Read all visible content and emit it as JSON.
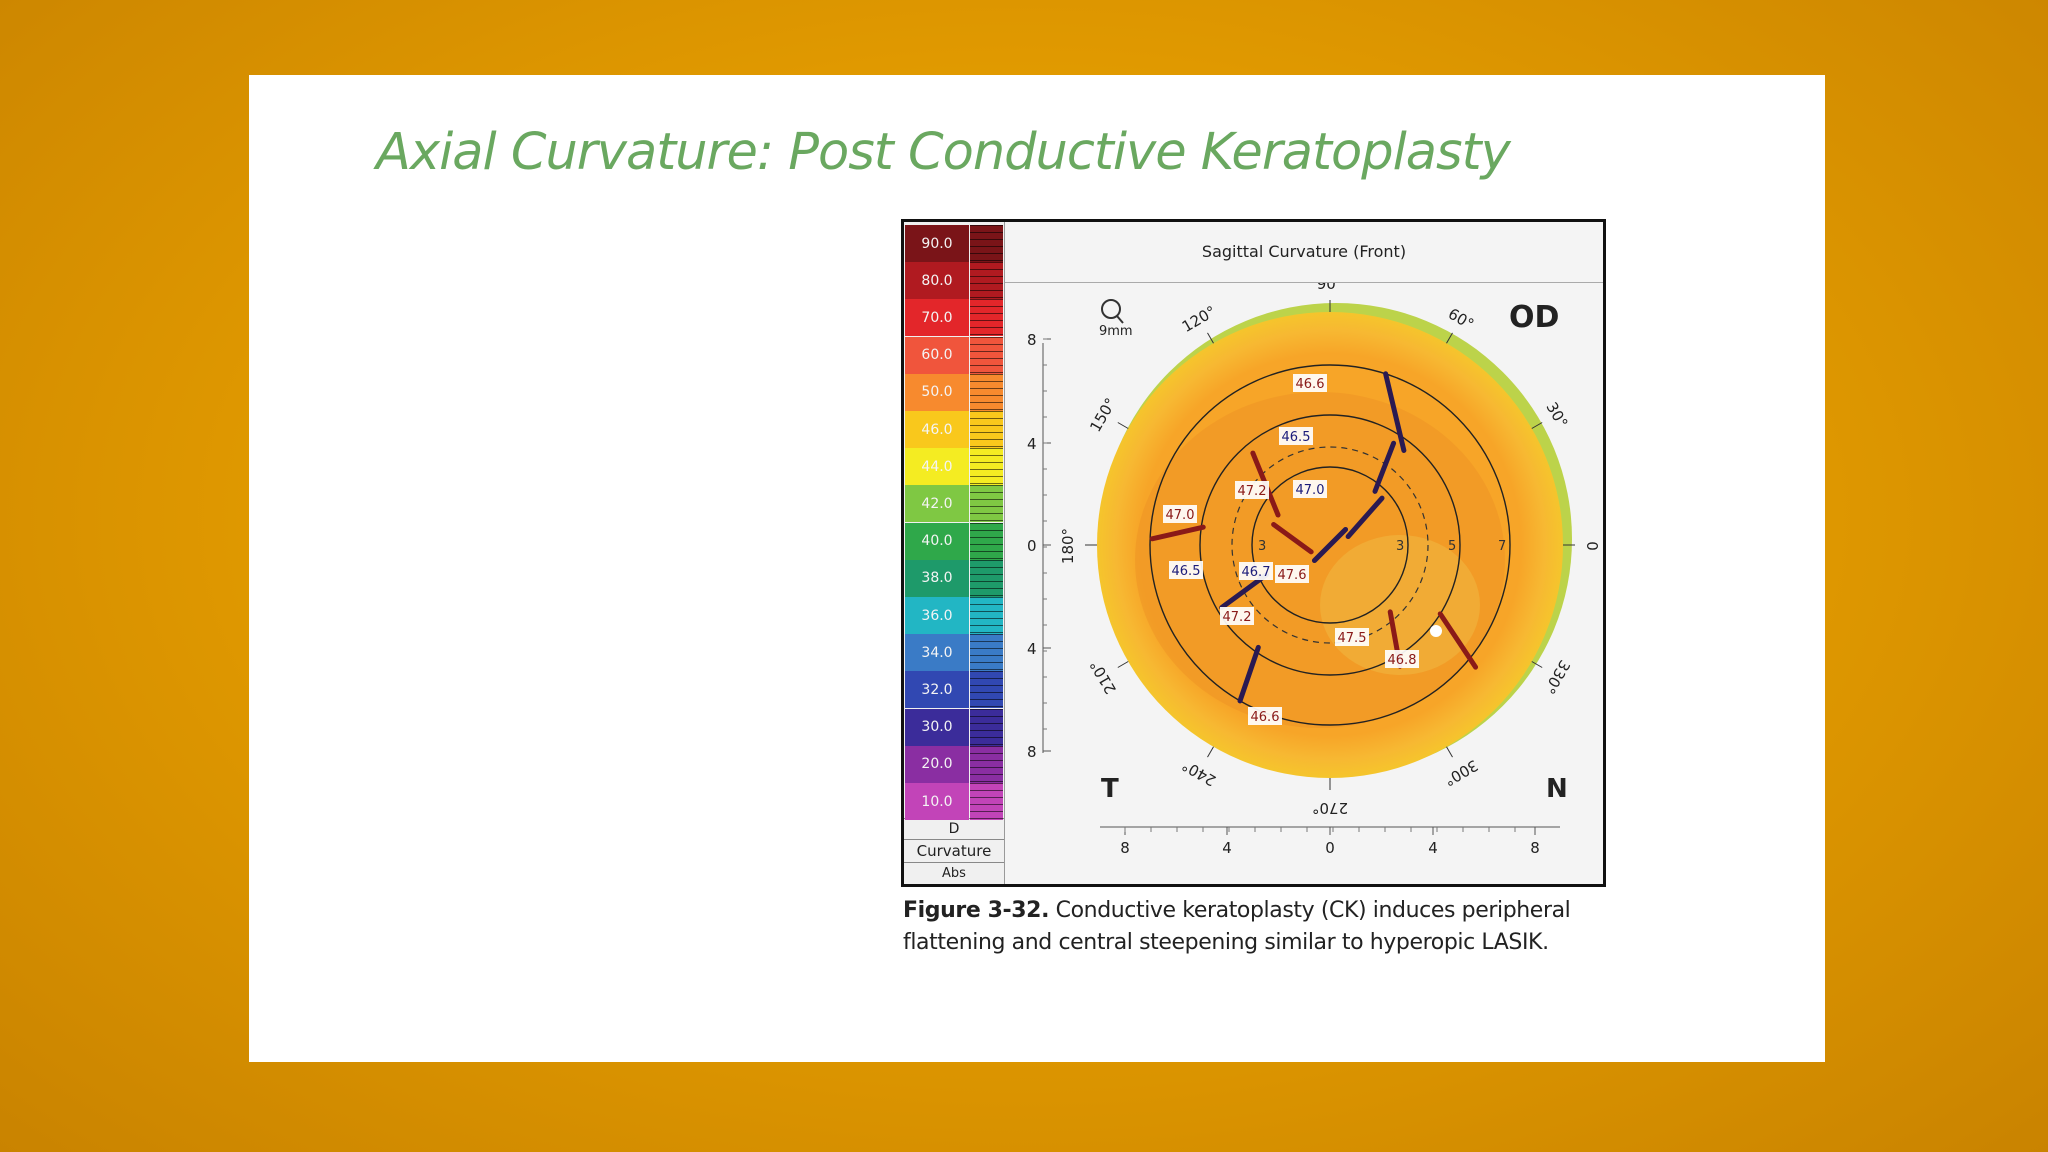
{
  "slide": {
    "title": "Axial Curvature: Post Conductive Keratoplasty"
  },
  "figure": {
    "map_title": "Sagittal Curvature (Front)",
    "scale": {
      "values": [
        "90.0",
        "80.0",
        "70.0",
        "60.0",
        "50.0",
        "46.0",
        "44.0",
        "42.0",
        "40.0",
        "38.0",
        "36.0",
        "34.0",
        "32.0",
        "30.0",
        "20.0",
        "10.0"
      ],
      "colors": [
        "#7a1418",
        "#b01a20",
        "#e3262a",
        "#f0553c",
        "#f78a2e",
        "#f9c81c",
        "#f4ec22",
        "#7fc843",
        "#2fa84a",
        "#1e9a6a",
        "#22b6c4",
        "#3a7bc6",
        "#3148b2",
        "#3b2c9a",
        "#8a2ea2",
        "#c244b8"
      ],
      "unit": "D",
      "quantity": "Curvature",
      "mode": "Abs"
    },
    "eye": "OD",
    "temporal": "T",
    "nasal": "N",
    "aperture": "9mm",
    "angles": [
      "90°",
      "60°",
      "30°",
      "0",
      "330°",
      "300°",
      "270°",
      "240°",
      "210°",
      "180°",
      "150°",
      "120°"
    ],
    "axis_ticks_y": [
      "8",
      "4",
      "0",
      "4",
      "8"
    ],
    "axis_ticks_x": [
      "8",
      "4",
      "0",
      "4",
      "8"
    ],
    "zone_numbers": [
      "3",
      "5",
      "7"
    ],
    "readings": [
      "46.6",
      "46.5",
      "47.0",
      "47.2",
      "47.0",
      "46.5",
      "46.7",
      "47.6",
      "47.2",
      "47.5",
      "46.8",
      "46.6"
    ],
    "colors": {
      "outer_ring": "#f5c52c",
      "map_fill": "#f7a528",
      "flat_zone": "#ef9324",
      "treatment_line": "#2a1a52",
      "treatment_line_alt": "#8a1a18"
    }
  },
  "caption": {
    "label": "Figure 3-32.",
    "text": "Conductive keratoplasty (CK) induces peripheral flattening and central steepening similar to hyperopic LASIK."
  }
}
